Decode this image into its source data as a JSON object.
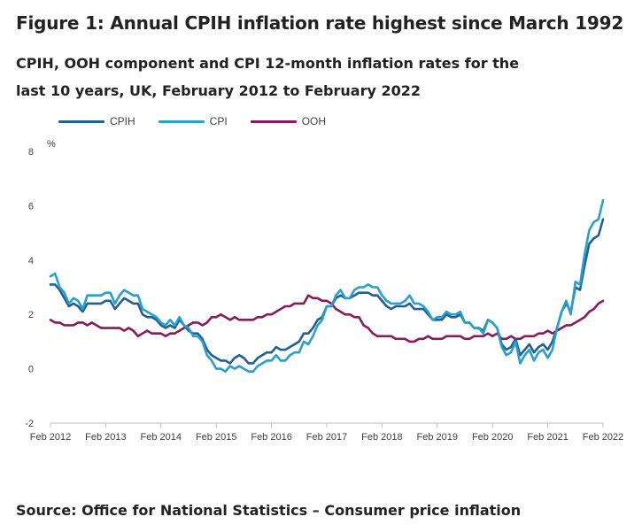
{
  "header": {
    "title": "Figure 1: Annual CPIH inflation rate highest since March 1992",
    "subtitle": "CPIH, OOH component and CPI 12-month inflation rates for the last 10 years, UK, February 2012 to February 2022"
  },
  "footer": {
    "source": "Source: Office for National Statistics – Consumer price inflation"
  },
  "colors": {
    "CPIH": "#206095",
    "CPI": "#27a0cc",
    "OOH": "#871a5b",
    "axis": "#bcbcbc",
    "text": "#414042"
  },
  "chart_data": {
    "type": "line",
    "title": "Figure 1: Annual CPIH inflation rate highest since March 1992",
    "subtitle": "CPIH, OOH component and CPI 12-month inflation rates for the last 10 years, UK, February 2012 to February 2022",
    "ylabel": "%",
    "xlabel": "",
    "ylim": [
      -2,
      8
    ],
    "yticks": [
      -2,
      0,
      2,
      4,
      6,
      8
    ],
    "xtick_labels": [
      "Feb 2012",
      "Feb 2013",
      "Feb 2014",
      "Feb 2015",
      "Feb 2016",
      "Feb 2017",
      "Feb 2018",
      "Feb 2019",
      "Feb 2020",
      "Feb 2021",
      "Feb 2022"
    ],
    "x_start": "Feb 2012",
    "x_end": "Feb 2022",
    "legend_position": "top-left",
    "grid": false,
    "series": [
      {
        "name": "CPIH",
        "values": [
          3.1,
          3.1,
          2.9,
          2.6,
          2.3,
          2.4,
          2.3,
          2.1,
          2.4,
          2.4,
          2.4,
          2.4,
          2.5,
          2.5,
          2.2,
          2.4,
          2.6,
          2.5,
          2.4,
          2.4,
          2.0,
          1.9,
          1.9,
          1.8,
          1.6,
          1.5,
          1.6,
          1.5,
          1.8,
          1.6,
          1.4,
          1.3,
          1.3,
          1.1,
          0.7,
          0.5,
          0.4,
          0.3,
          0.3,
          0.2,
          0.4,
          0.5,
          0.4,
          0.2,
          0.2,
          0.4,
          0.5,
          0.6,
          0.6,
          0.8,
          0.7,
          0.7,
          0.8,
          0.9,
          1.0,
          1.3,
          1.3,
          1.5,
          1.8,
          1.9,
          2.3,
          2.3,
          2.6,
          2.7,
          2.6,
          2.6,
          2.7,
          2.8,
          2.8,
          2.8,
          2.7,
          2.7,
          2.5,
          2.3,
          2.2,
          2.3,
          2.3,
          2.3,
          2.4,
          2.2,
          2.2,
          2.2,
          2.0,
          1.8,
          1.8,
          1.8,
          2.0,
          1.9,
          1.9,
          2.0,
          1.7,
          1.7,
          1.5,
          1.5,
          1.4,
          1.8,
          1.7,
          1.5,
          0.9,
          0.7,
          0.8,
          1.1,
          0.5,
          0.7,
          0.9,
          0.6,
          0.8,
          0.9,
          0.7,
          1.0,
          1.5,
          2.1,
          2.4,
          2.1,
          3.0,
          2.9,
          3.8,
          4.6,
          4.8,
          4.9,
          5.5
        ]
      },
      {
        "name": "CPI",
        "values": [
          3.4,
          3.5,
          3.0,
          2.8,
          2.4,
          2.6,
          2.5,
          2.2,
          2.7,
          2.7,
          2.7,
          2.7,
          2.8,
          2.8,
          2.4,
          2.7,
          2.9,
          2.8,
          2.7,
          2.7,
          2.2,
          2.1,
          2.0,
          1.9,
          1.7,
          1.6,
          1.8,
          1.6,
          1.9,
          1.6,
          1.5,
          1.2,
          1.2,
          1.0,
          0.5,
          0.3,
          0.0,
          0.0,
          -0.1,
          0.1,
          0.0,
          0.1,
          0.0,
          -0.1,
          -0.1,
          0.1,
          0.2,
          0.3,
          0.3,
          0.5,
          0.3,
          0.3,
          0.5,
          0.6,
          0.6,
          1.0,
          0.9,
          1.2,
          1.6,
          1.8,
          2.3,
          2.3,
          2.7,
          2.9,
          2.6,
          2.6,
          2.9,
          3.0,
          3.0,
          3.1,
          3.0,
          3.0,
          2.7,
          2.5,
          2.4,
          2.4,
          2.4,
          2.5,
          2.7,
          2.4,
          2.4,
          2.3,
          2.1,
          1.8,
          1.9,
          1.9,
          2.1,
          2.0,
          2.0,
          2.1,
          1.7,
          1.7,
          1.5,
          1.5,
          1.3,
          1.8,
          1.7,
          1.5,
          0.8,
          0.5,
          0.6,
          1.0,
          0.2,
          0.5,
          0.7,
          0.3,
          0.6,
          0.7,
          0.4,
          0.7,
          1.5,
          2.1,
          2.5,
          2.0,
          3.2,
          3.1,
          4.2,
          5.1,
          5.4,
          5.5,
          6.2
        ]
      },
      {
        "name": "OOH",
        "values": [
          1.8,
          1.7,
          1.7,
          1.6,
          1.6,
          1.6,
          1.7,
          1.7,
          1.6,
          1.7,
          1.6,
          1.5,
          1.5,
          1.5,
          1.5,
          1.5,
          1.4,
          1.5,
          1.4,
          1.2,
          1.3,
          1.4,
          1.3,
          1.3,
          1.3,
          1.2,
          1.3,
          1.3,
          1.4,
          1.5,
          1.6,
          1.7,
          1.7,
          1.6,
          1.7,
          1.9,
          1.9,
          2.0,
          1.9,
          1.8,
          1.9,
          1.8,
          1.8,
          1.8,
          1.8,
          1.9,
          1.9,
          2.0,
          2.0,
          2.1,
          2.2,
          2.3,
          2.3,
          2.4,
          2.4,
          2.4,
          2.7,
          2.6,
          2.6,
          2.5,
          2.5,
          2.4,
          2.2,
          2.1,
          2.0,
          2.0,
          1.9,
          1.9,
          1.6,
          1.5,
          1.3,
          1.2,
          1.2,
          1.2,
          1.2,
          1.1,
          1.1,
          1.1,
          1.0,
          1.0,
          1.1,
          1.1,
          1.2,
          1.1,
          1.1,
          1.1,
          1.2,
          1.2,
          1.2,
          1.2,
          1.1,
          1.1,
          1.2,
          1.2,
          1.2,
          1.3,
          1.2,
          1.3,
          1.1,
          1.1,
          1.2,
          1.1,
          1.1,
          1.2,
          1.2,
          1.2,
          1.3,
          1.3,
          1.4,
          1.3,
          1.4,
          1.5,
          1.6,
          1.6,
          1.7,
          1.8,
          1.9,
          2.1,
          2.2,
          2.4,
          2.5
        ]
      }
    ]
  }
}
